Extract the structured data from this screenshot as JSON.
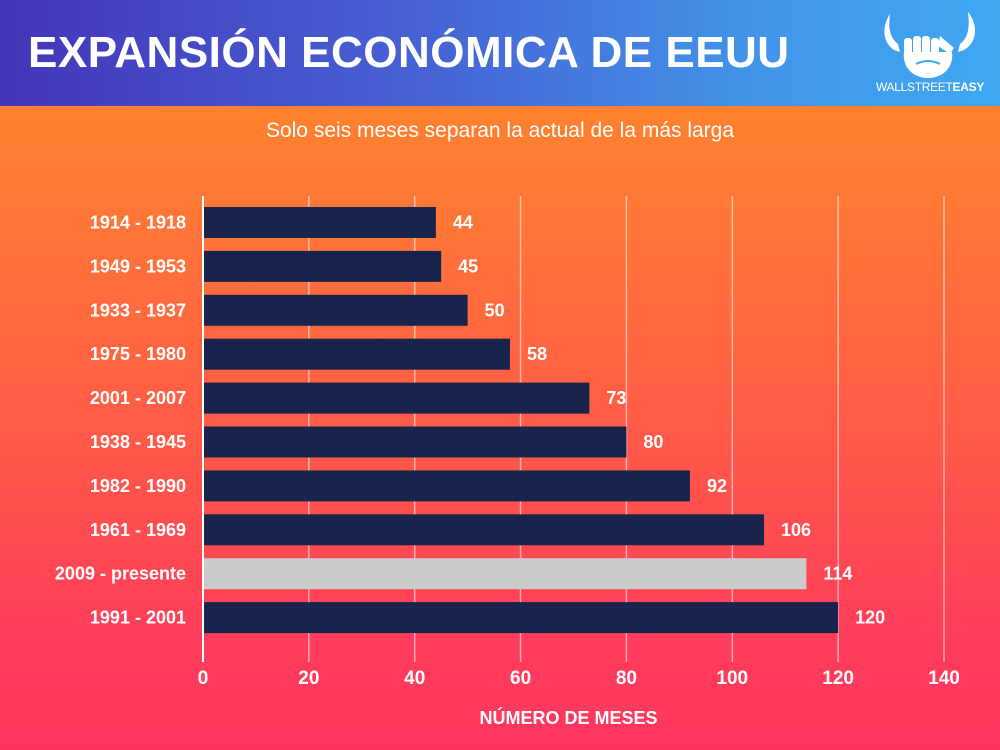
{
  "header": {
    "title": "EXPANSIÓN ECONÓMICA DE EEUU",
    "logo_text_light": "WALLSTREET",
    "logo_text_bold": "EASY",
    "logo_icon": "bull-horns-fist-icon"
  },
  "colors": {
    "header_gradient": [
      "#4435b9",
      "#3fa8f3"
    ],
    "background_gradient": [
      "#ff8a24",
      "#ff355e"
    ],
    "bar_default": "#19244d",
    "bar_highlight": "#cbcbcb",
    "text": "#ffffff",
    "gridline": "#ffffff"
  },
  "chart_data": {
    "type": "bar",
    "orientation": "horizontal",
    "title": "EXPANSIÓN ECONÓMICA DE EEUU",
    "subtitle": "Solo seis meses separan la actual de la más larga",
    "categories": [
      "1914 - 1918",
      "1949 - 1953",
      "1933 - 1937",
      "1975 - 1980",
      "2001 - 2007",
      "1938 - 1945",
      "1982 - 1990",
      "1961 - 1969",
      "2009 - presente",
      "1991 - 2001"
    ],
    "values": [
      44,
      45,
      50,
      58,
      73,
      80,
      92,
      106,
      114,
      120
    ],
    "highlight": [
      "2009 - presente"
    ],
    "xlabel": "NÚMERO DE MESES",
    "ylabel": "",
    "xlim": [
      0,
      140
    ],
    "xticks": [
      0,
      20,
      40,
      60,
      80,
      100,
      120,
      140
    ],
    "grid": "vertical",
    "data_labels": true,
    "legend": "none"
  }
}
